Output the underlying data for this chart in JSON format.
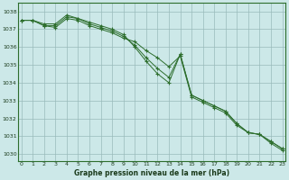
{
  "xlabel": "Graphe pression niveau de la mer (hPa)",
  "hours": [
    0,
    1,
    2,
    3,
    4,
    5,
    6,
    7,
    8,
    9,
    10,
    11,
    12,
    13,
    14,
    15,
    16,
    17,
    18,
    19,
    20,
    21,
    22,
    23
  ],
  "series1": [
    1037.5,
    1037.5,
    1037.2,
    1037.1,
    1037.6,
    1037.5,
    1037.2,
    1037.0,
    1036.8,
    1036.5,
    1036.3,
    1035.8,
    1035.4,
    1034.9,
    1035.5,
    1033.2,
    1032.9,
    1032.6,
    1032.3,
    1031.6,
    1031.2,
    1031.1,
    1030.6,
    1030.2
  ],
  "series2": [
    1037.5,
    1037.5,
    1037.2,
    1037.2,
    1037.7,
    1037.6,
    1037.3,
    1037.1,
    1036.9,
    1036.6,
    1036.1,
    1035.4,
    1034.8,
    1034.3,
    1035.6,
    1033.3,
    1033.0,
    1032.7,
    1032.4,
    1031.7,
    1031.2,
    1031.1,
    1030.7,
    1030.3
  ],
  "series3": [
    1037.5,
    1037.5,
    1037.3,
    1037.3,
    1037.8,
    1037.6,
    1037.4,
    1037.2,
    1037.0,
    1036.7,
    1036.0,
    1035.2,
    1034.5,
    1034.0,
    1035.6,
    1033.3,
    1033.0,
    1032.7,
    1032.4,
    1031.7,
    1031.2,
    1031.1,
    1030.7,
    1030.3
  ],
  "line_color": "#2d6e2d",
  "bg_color": "#cce8e8",
  "grid_color": "#99bbbb",
  "ylim_min": 1029.6,
  "ylim_max": 1038.5,
  "yticks": [
    1030,
    1031,
    1032,
    1033,
    1034,
    1035,
    1036,
    1037,
    1038
  ],
  "xticks": [
    0,
    1,
    2,
    3,
    4,
    5,
    6,
    7,
    8,
    9,
    10,
    11,
    12,
    13,
    14,
    15,
    16,
    17,
    18,
    19,
    20,
    21,
    22,
    23
  ]
}
